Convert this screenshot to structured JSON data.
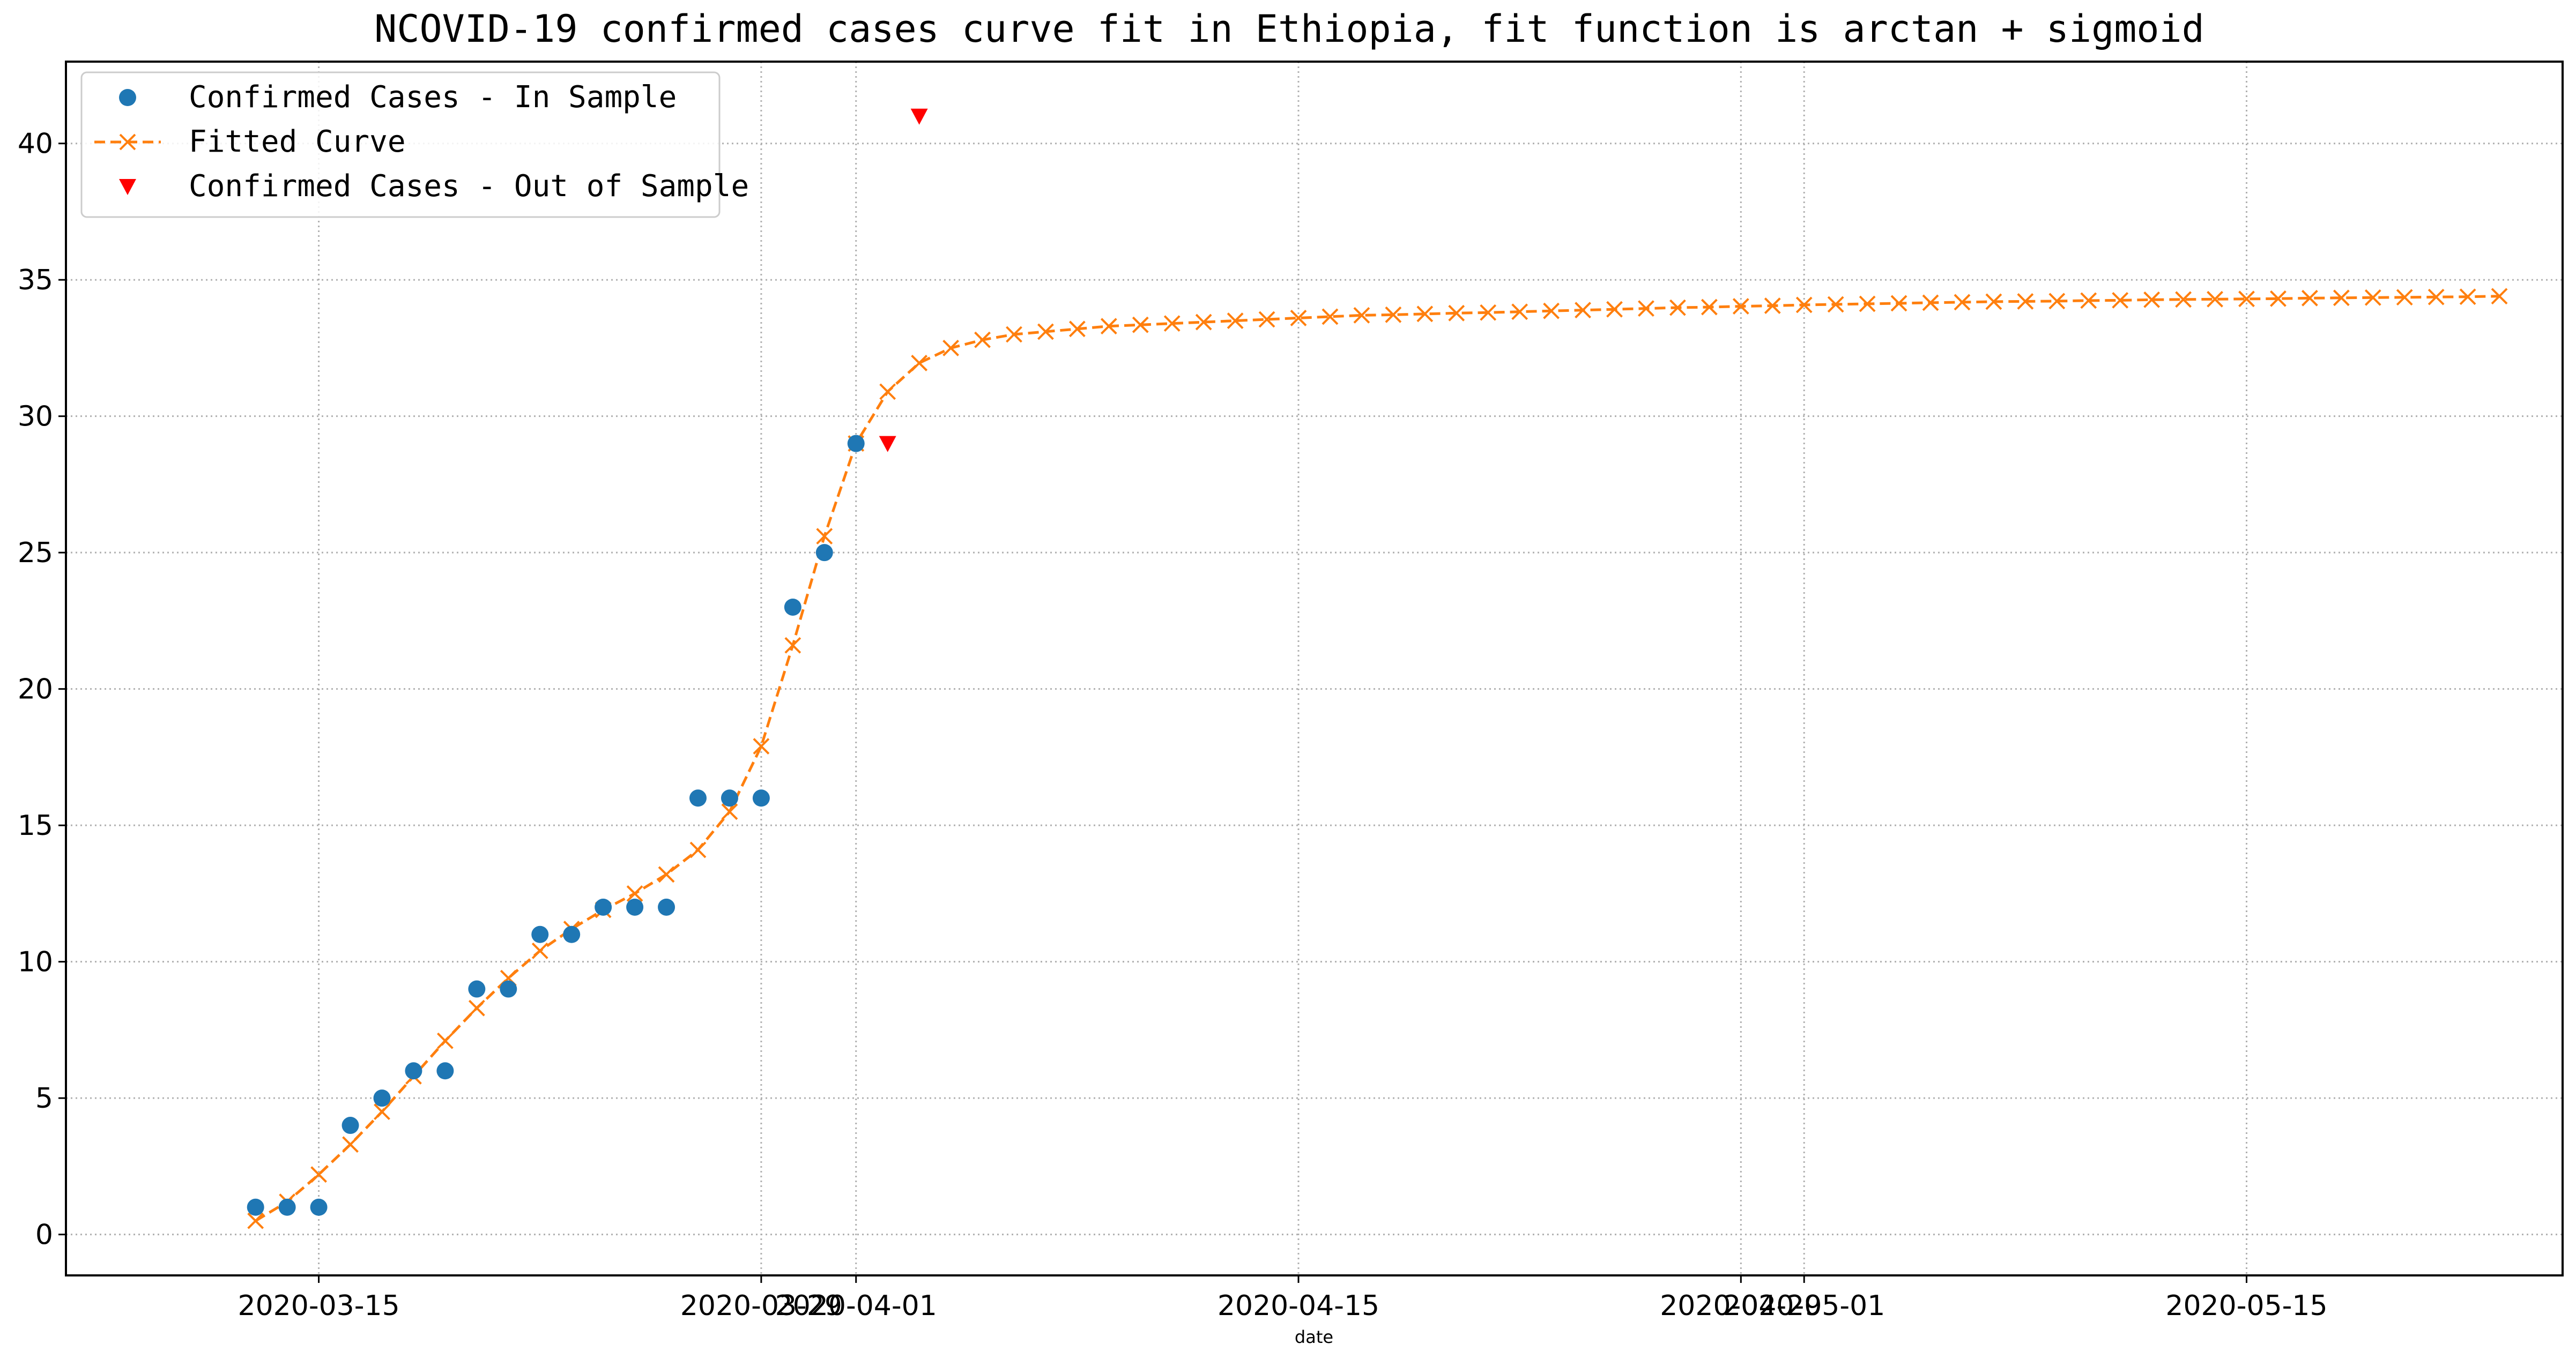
{
  "chart_data": {
    "type": "line",
    "title": "NCOVID-19 confirmed cases curve fit in Ethiopia, fit function is arctan + sigmoid",
    "xlabel": "date",
    "ylabel": "",
    "ylim": [
      -1.5,
      43
    ],
    "xlim": [
      "2020-03-07",
      "2020-05-25"
    ],
    "grid": true,
    "legend_position": "top-left",
    "x_ticks": [
      {
        "date": "2020-03-15",
        "label": "2020-03-15"
      },
      {
        "date": "2020-03-29",
        "label": "2020-03-29"
      },
      {
        "date": "2020-04-01",
        "label": "2020-04-01"
      },
      {
        "date": "2020-04-15",
        "label": "2020-04-15"
      },
      {
        "date": "2020-04-29",
        "label": "2020-04-29"
      },
      {
        "date": "2020-05-01",
        "label": "2020-05-01"
      },
      {
        "date": "2020-05-15",
        "label": "2020-05-15"
      }
    ],
    "y_ticks": [
      0,
      5,
      10,
      15,
      20,
      25,
      30,
      35,
      40
    ],
    "series": [
      {
        "name": "Confirmed Cases - In Sample",
        "marker": "circle",
        "color": "#1f77b4",
        "x": [
          "2020-03-13",
          "2020-03-14",
          "2020-03-15",
          "2020-03-16",
          "2020-03-17",
          "2020-03-18",
          "2020-03-19",
          "2020-03-20",
          "2020-03-21",
          "2020-03-22",
          "2020-03-23",
          "2020-03-24",
          "2020-03-25",
          "2020-03-26",
          "2020-03-27",
          "2020-03-28",
          "2020-03-29",
          "2020-03-30",
          "2020-03-31",
          "2020-04-01"
        ],
        "y": [
          1,
          1,
          1,
          4,
          5,
          6,
          6,
          9,
          9,
          11,
          11,
          12,
          12,
          12,
          16,
          16,
          16,
          23,
          25,
          29
        ]
      },
      {
        "name": "Fitted Curve",
        "marker": "x",
        "line": "dashed",
        "color": "#ff7f0e",
        "x_start": "2020-03-13",
        "y": [
          0.5,
          1.2,
          2.2,
          3.3,
          4.5,
          5.8,
          7.1,
          8.3,
          9.4,
          10.4,
          11.2,
          11.9,
          12.5,
          13.2,
          14.1,
          15.5,
          17.9,
          21.6,
          25.6,
          29.0,
          30.9,
          31.95,
          32.5,
          32.8,
          33.0,
          33.1,
          33.2,
          33.3,
          33.35,
          33.4,
          33.45,
          33.5,
          33.55,
          33.6,
          33.65,
          33.7,
          33.72,
          33.75,
          33.78,
          33.8,
          33.83,
          33.86,
          33.89,
          33.92,
          33.95,
          33.98,
          34.0,
          34.03,
          34.05,
          34.08,
          34.1,
          34.12,
          34.14,
          34.16,
          34.18,
          34.2,
          34.21,
          34.22,
          34.24,
          34.25,
          34.27,
          34.28,
          34.29,
          34.3,
          34.31,
          34.33,
          34.34,
          34.35,
          34.36,
          34.37,
          34.38,
          34.4
        ]
      },
      {
        "name": "Confirmed Cases - Out of Sample",
        "marker": "triangle-down",
        "color": "#ff0000",
        "x": [
          "2020-04-02",
          "2020-04-03"
        ],
        "y": [
          29,
          41
        ]
      }
    ]
  }
}
